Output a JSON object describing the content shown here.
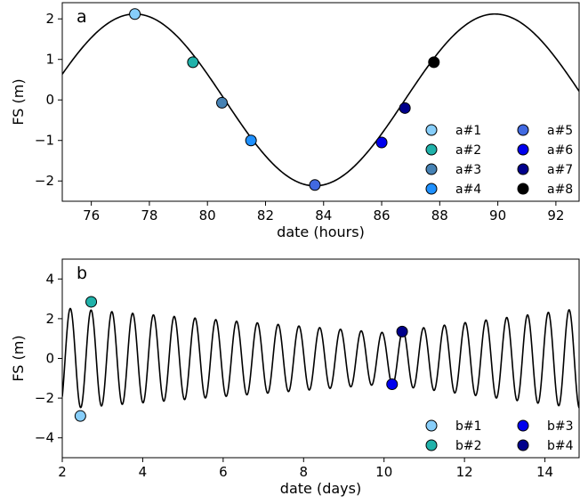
{
  "chart_data": [
    {
      "type": "line",
      "panel_label": "a",
      "xlabel": "date (hours)",
      "ylabel": "FS (m)",
      "xlim": [
        75,
        92.8
      ],
      "ylim": [
        -2.5,
        2.4
      ],
      "xticks": [
        76,
        78,
        80,
        82,
        84,
        86,
        88,
        90,
        92
      ],
      "yticks": [
        -2,
        -1,
        0,
        1,
        2
      ],
      "ytick_labels": [
        "−2",
        "−1",
        "0",
        "1",
        "2"
      ],
      "curve": {
        "amplitude": 2.12,
        "period_hours": 12.4,
        "peak_at_hours": 77.5,
        "color": "#000000"
      },
      "markers": [
        {
          "name": "a#1",
          "x": 77.5,
          "y": 2.12,
          "color": "#87CEFA"
        },
        {
          "name": "a#2",
          "x": 79.5,
          "y": 0.93,
          "color": "#20B2AA"
        },
        {
          "name": "a#3",
          "x": 80.5,
          "y": -0.07,
          "color": "#4682B4"
        },
        {
          "name": "a#4",
          "x": 81.5,
          "y": -1.0,
          "color": "#1E90FF"
        },
        {
          "name": "a#5",
          "x": 83.7,
          "y": -2.1,
          "color": "#4169E1"
        },
        {
          "name": "a#6",
          "x": 86.0,
          "y": -1.05,
          "color": "#0000EE"
        },
        {
          "name": "a#7",
          "x": 86.8,
          "y": -0.2,
          "color": "#00008B"
        },
        {
          "name": "a#8",
          "x": 87.8,
          "y": 0.93,
          "color": "#000000"
        }
      ],
      "legend": {
        "placement": "lower-right",
        "columns": 2
      }
    },
    {
      "type": "line",
      "panel_label": "b",
      "xlabel": "date (days)",
      "ylabel": "FS (m)",
      "xlim": [
        2,
        14.85
      ],
      "ylim": [
        -5,
        5
      ],
      "xticks": [
        2,
        4,
        6,
        8,
        10,
        12,
        14
      ],
      "yticks": [
        -4,
        -2,
        0,
        2,
        4
      ],
      "ytick_labels": [
        "−4",
        "−2",
        "0",
        "2",
        "4"
      ],
      "curve": {
        "period_days": 0.5167,
        "peak_at_days": 2.2,
        "amplitude_max": 2.9,
        "amplitude_min": 1.3,
        "min_amplitude_at_days": 10.0,
        "color": "#000000"
      },
      "markers": [
        {
          "name": "b#1",
          "x": 2.45,
          "y": -2.9,
          "color": "#87CEFA"
        },
        {
          "name": "b#2",
          "x": 2.72,
          "y": 2.85,
          "color": "#20B2AA"
        },
        {
          "name": "b#3",
          "x": 10.2,
          "y": -1.3,
          "color": "#0000EE"
        },
        {
          "name": "b#4",
          "x": 10.45,
          "y": 1.35,
          "color": "#00008B"
        }
      ],
      "legend": {
        "placement": "lower-right",
        "columns": 2
      }
    }
  ]
}
